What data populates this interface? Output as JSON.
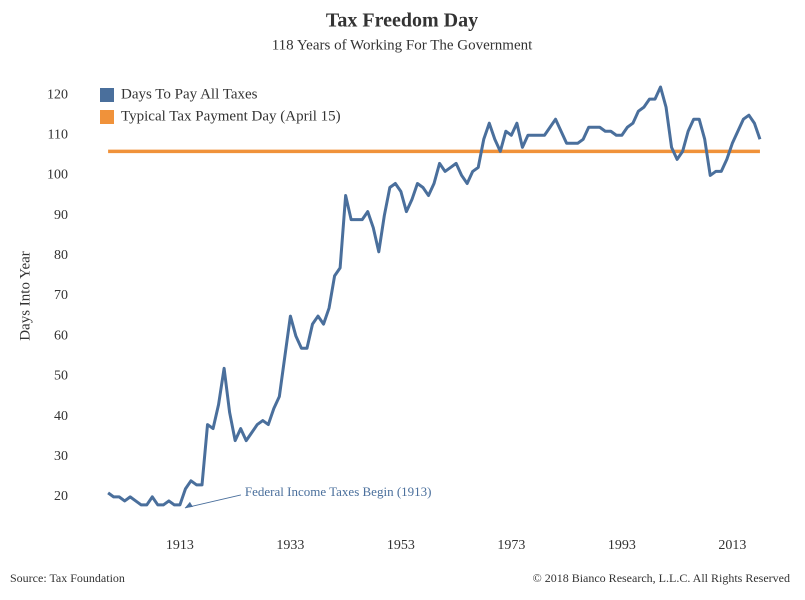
{
  "chart_data": {
    "type": "line",
    "title": "Tax Freedom Day",
    "subtitle": "118 Years of Working For The Government",
    "y_label": "Days Into Year",
    "source": "Source: Tax Foundation",
    "copyright": "© 2018 Bianco Research, L.L.C. All Rights Reserved",
    "x": [
      1900,
      1901,
      1902,
      1903,
      1904,
      1905,
      1906,
      1907,
      1908,
      1909,
      1910,
      1911,
      1912,
      1913,
      1914,
      1915,
      1916,
      1917,
      1918,
      1919,
      1920,
      1921,
      1922,
      1923,
      1924,
      1925,
      1926,
      1927,
      1928,
      1929,
      1930,
      1931,
      1932,
      1933,
      1934,
      1935,
      1936,
      1937,
      1938,
      1939,
      1940,
      1941,
      1942,
      1943,
      1944,
      1945,
      1946,
      1947,
      1948,
      1949,
      1950,
      1951,
      1952,
      1953,
      1954,
      1955,
      1956,
      1957,
      1958,
      1959,
      1960,
      1961,
      1962,
      1963,
      1964,
      1965,
      1966,
      1967,
      1968,
      1969,
      1970,
      1971,
      1972,
      1973,
      1974,
      1975,
      1976,
      1977,
      1978,
      1979,
      1980,
      1981,
      1982,
      1983,
      1984,
      1985,
      1986,
      1987,
      1988,
      1989,
      1990,
      1991,
      1992,
      1993,
      1994,
      1995,
      1996,
      1997,
      1998,
      1999,
      2000,
      2001,
      2002,
      2003,
      2004,
      2005,
      2006,
      2007,
      2008,
      2009,
      2010,
      2011,
      2012,
      2013,
      2014,
      2015,
      2016,
      2017,
      2018
    ],
    "series": [
      {
        "name": "Days To Pay All Taxes",
        "color": "#4a6f9c",
        "values": [
          21,
          20,
          20,
          19,
          20,
          19,
          18,
          18,
          20,
          18,
          18,
          19,
          18,
          18,
          22,
          24,
          23,
          23,
          38,
          37,
          43,
          52,
          41,
          34,
          37,
          34,
          36,
          38,
          39,
          38,
          42,
          45,
          55,
          65,
          60,
          57,
          57,
          63,
          65,
          63,
          67,
          75,
          77,
          95,
          89,
          89,
          89,
          91,
          87,
          81,
          90,
          97,
          98,
          96,
          91,
          94,
          98,
          97,
          95,
          98,
          103,
          101,
          102,
          103,
          100,
          98,
          101,
          102,
          109,
          113,
          109,
          106,
          111,
          110,
          113,
          107,
          110,
          110,
          110,
          110,
          112,
          114,
          111,
          108,
          108,
          108,
          109,
          112,
          112,
          112,
          111,
          111,
          110,
          110,
          112,
          113,
          116,
          117,
          119,
          119,
          122,
          117,
          107,
          104,
          106,
          111,
          114,
          114,
          109,
          100,
          101,
          101,
          104,
          108,
          111,
          114,
          115,
          113,
          109
        ]
      },
      {
        "name": "Typical Tax Payment Day (April 15)",
        "color": "#f0923a",
        "x": [
          1900,
          2018
        ],
        "values": [
          106,
          106
        ]
      }
    ],
    "annotations": [
      {
        "text": "Federal Income Taxes Begin (1913)",
        "x": 1913,
        "y": 18
      }
    ],
    "xlim": [
      1896,
      2020
    ],
    "xticks": [
      1913,
      1933,
      1953,
      1973,
      1993,
      2013
    ],
    "ylim": [
      14,
      125
    ],
    "yticks": [
      20,
      30,
      40,
      50,
      60,
      70,
      80,
      90,
      100,
      110,
      120
    ],
    "legend": "upper left",
    "grid": false
  }
}
